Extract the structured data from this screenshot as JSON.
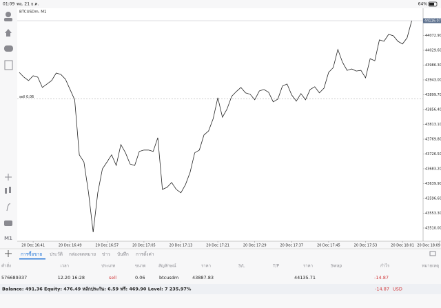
{
  "status_bar": {
    "time": "01:09",
    "date": "พฤ. 21 ธ.ค.",
    "battery": "64%"
  },
  "chart_data": {
    "type": "line",
    "title": "BTCUSDm, M1",
    "color": "#222222",
    "categories": [
      null,
      null,
      null,
      "20 Dec 16:41",
      null,
      null,
      null,
      null,
      null,
      null,
      null,
      "20 Dec 16:49",
      null,
      null,
      null,
      null,
      null,
      null,
      null,
      "20 Dec 16:57",
      null,
      null,
      null,
      null,
      null,
      null,
      null,
      "20 Dec 17:05",
      null,
      null,
      null,
      null,
      null,
      null,
      null,
      "20 Dec 17:13",
      null,
      null,
      null,
      null,
      null,
      null,
      null,
      "20 Dec 17:21",
      null,
      null,
      null,
      null,
      null,
      null,
      null,
      "20 Dec 17:29",
      null,
      null,
      null,
      null,
      null,
      null,
      null,
      "20 Dec 17:37",
      null,
      null,
      null,
      null,
      null,
      null,
      null,
      "20 Dec 17:45",
      null,
      null,
      null,
      null,
      null,
      null,
      null,
      "20 Dec 17:53",
      null,
      null,
      null,
      null,
      null,
      null,
      null,
      "20 Dec 18:01",
      null,
      null,
      null,
      null,
      null,
      null,
      null,
      "20 Dec 18:09"
    ],
    "values": [
      43965,
      43951,
      43941,
      43955,
      43951,
      43921,
      43931,
      43941,
      43963,
      43959,
      43945,
      43915,
      43885,
      43724,
      43703,
      43613,
      43498,
      43613,
      43683,
      43703,
      43724,
      43693,
      43754,
      43730,
      43697,
      43693,
      43734,
      43738,
      43738,
      43734,
      43774,
      43623,
      43629,
      43643,
      43623,
      43613,
      43637,
      43673,
      43730,
      43738,
      43782,
      43794,
      43830,
      43891,
      43834,
      43858,
      43895,
      43909,
      43921,
      43905,
      43901,
      43885,
      43911,
      43915,
      43907,
      43879,
      43887,
      43925,
      43931,
      43899,
      43881,
      43903,
      43885,
      43915,
      43923,
      43905,
      43919,
      43965,
      43979,
      44032,
      43995,
      43971,
      43975,
      43969,
      43971,
      43949,
      44005,
      43999,
      44060,
      44056,
      44076,
      44072,
      44056,
      44048,
      44066,
      44116,
      null,
      null,
      null,
      null,
      null,
      null
    ],
    "ylim": [
      43471.7,
      44152.4
    ],
    "yticks": [
      {
        "value": 44072.9,
        "label": "44072.90"
      },
      {
        "value": 44029.6,
        "label": "44029.60"
      },
      {
        "value": 43986.3,
        "label": "43986.30"
      },
      {
        "value": 43943,
        "label": "43943.00"
      },
      {
        "value": 43899.7,
        "label": "43899.70"
      },
      {
        "value": 43856.4,
        "label": "43856.40"
      },
      {
        "value": 43813.1,
        "label": "43813.10"
      },
      {
        "value": 43769.8,
        "label": "43769.80"
      },
      {
        "value": 43726.5,
        "label": "43726.50"
      },
      {
        "value": 43683.2,
        "label": "43683.20"
      },
      {
        "value": 43639.9,
        "label": "43639.90"
      },
      {
        "value": 43596.6,
        "label": "43596.60"
      },
      {
        "value": 43553.3,
        "label": "43553.30"
      },
      {
        "value": 43510,
        "label": "43510.00"
      }
    ],
    "bid": {
      "value": 44116.07,
      "label": "44116.07"
    },
    "order_line": {
      "value": 43887.83,
      "label": "sell 0.06"
    }
  },
  "tabs": [
    "การซื้อขาย",
    "ประวัติ",
    "กล่องจดหมาย",
    "ข่าว",
    "บันทึก",
    "การตั้งค่า"
  ],
  "table": {
    "headers": [
      "คำสั่ง",
      "เวลา",
      "ประเภท",
      "ขนาด",
      "สัญลักษณ์",
      "ราคา",
      "S/L",
      "T/P",
      "ราคา",
      "Swap",
      "กำไร",
      "หมายเหตุ"
    ],
    "row": {
      "ticket": "576689337",
      "time": "12.20 16:28",
      "type": "sell",
      "volume": "0.06",
      "symbol": "btcusdm",
      "open_price": "43887.83",
      "price": "44135.71",
      "profit": "-14.87"
    }
  },
  "footer": {
    "summary": "Balance: 491.36 Equity: 476.49 หลักประกัน: 6.59 ฟรี: 469.90 Level: 7 235.97%",
    "profit": "-14.87",
    "currency": "USD"
  }
}
